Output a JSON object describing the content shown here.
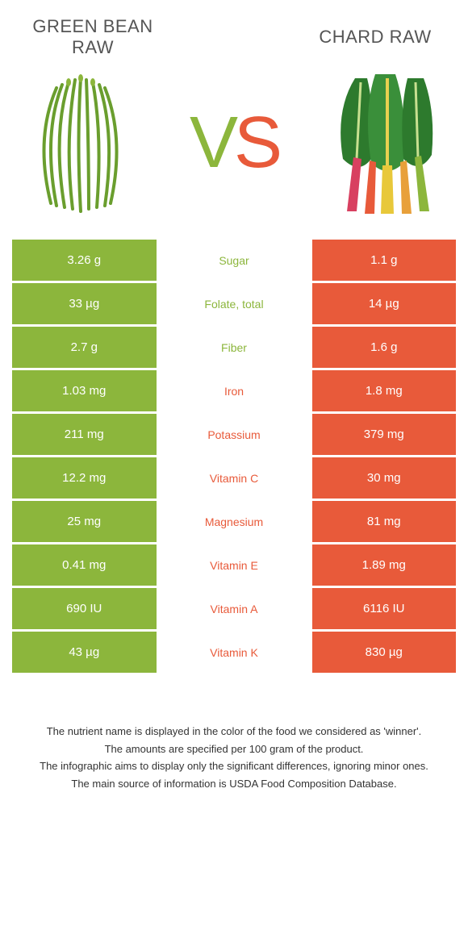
{
  "food_left": {
    "title": "Green Bean raw",
    "bar_color": "#8cb63c"
  },
  "food_right": {
    "title": "Chard raw",
    "bar_color": "#e85a3a"
  },
  "vs": {
    "v": "V",
    "s": "S"
  },
  "colors": {
    "left": "#8cb63c",
    "right": "#e85a3a",
    "text_muted": "#555555"
  },
  "nutrients": [
    {
      "name": "Sugar",
      "left": "3.26 g",
      "right": "1.1 g",
      "winner": "left"
    },
    {
      "name": "Folate, total",
      "left": "33 µg",
      "right": "14 µg",
      "winner": "left"
    },
    {
      "name": "Fiber",
      "left": "2.7 g",
      "right": "1.6 g",
      "winner": "left"
    },
    {
      "name": "Iron",
      "left": "1.03 mg",
      "right": "1.8 mg",
      "winner": "right"
    },
    {
      "name": "Potassium",
      "left": "211 mg",
      "right": "379 mg",
      "winner": "right"
    },
    {
      "name": "Vitamin C",
      "left": "12.2 mg",
      "right": "30 mg",
      "winner": "right"
    },
    {
      "name": "Magnesium",
      "left": "25 mg",
      "right": "81 mg",
      "winner": "right"
    },
    {
      "name": "Vitamin E",
      "left": "0.41 mg",
      "right": "1.89 mg",
      "winner": "right"
    },
    {
      "name": "Vitamin A",
      "left": "690 IU",
      "right": "6116 IU",
      "winner": "right"
    },
    {
      "name": "Vitamin K",
      "left": "43 µg",
      "right": "830 µg",
      "winner": "right"
    }
  ],
  "footer": {
    "line1": "The nutrient name is displayed in the color of the food we considered as 'winner'.",
    "line2": "The amounts are specified per 100 gram of the product.",
    "line3": "The infographic aims to display only the significant differences, ignoring minor ones.",
    "line4": "The main source of information is USDA Food Composition Database."
  }
}
